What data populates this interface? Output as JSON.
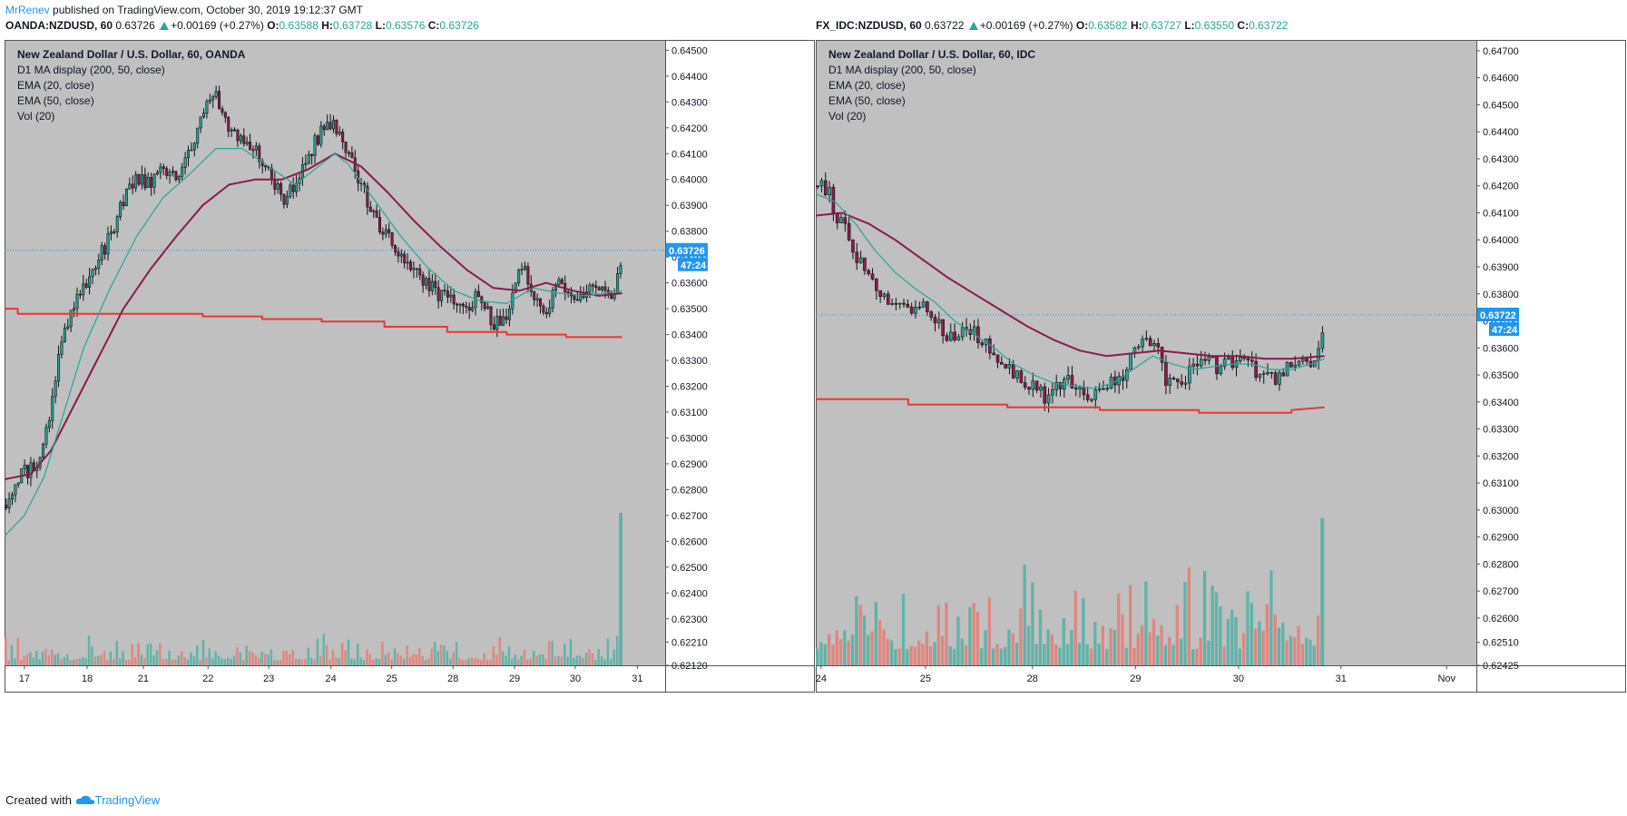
{
  "header": {
    "author": "MrRenev",
    "published": " published on TradingView.com, October 30, 2019 19:12:37 GMT"
  },
  "footer": {
    "created_with": "Created with",
    "brand": "TradingView"
  },
  "colors": {
    "bg": "#c0c0c0",
    "up": "#26a69a",
    "down": "#8d1c4e",
    "ema20": "#26a69a",
    "ema50": "#8b1a4a",
    "d1ma": "#e53935",
    "price_tag": "#2196f3",
    "vol_up": "#5fb3a9",
    "vol_down": "#e0867f"
  },
  "chart_data": [
    {
      "type": "candlestick",
      "symbol": "OANDA:NZDUSD",
      "interval": "60",
      "ohlc_header": {
        "sym": "OANDA:NZDUSD, 60",
        "last": "0.63726",
        "change": "+0.00169 (+0.27%)",
        "o": "0.63588",
        "h": "0.63728",
        "l": "0.63576",
        "c": "0.63726"
      },
      "legend": [
        "New Zealand Dollar / U.S. Dollar, 60, OANDA",
        "D1 MA display (200, 50, close)",
        "EMA (20, close)",
        "EMA (50, close)",
        "Vol (20)"
      ],
      "yticks": [
        "0.64500",
        "0.64400",
        "0.64300",
        "0.64200",
        "0.64100",
        "0.64000",
        "0.63900",
        "0.63800",
        "0.63700",
        "0.63600",
        "0.63500",
        "0.63400",
        "0.63300",
        "0.63200",
        "0.63100",
        "0.63000",
        "0.62900",
        "0.62800",
        "0.62700",
        "0.62600",
        "0.62500",
        "0.62400",
        "0.62300",
        "0.62210",
        "0.62120"
      ],
      "ylim": [
        0.6212,
        0.6454
      ],
      "xticks": [
        {
          "label": "17",
          "pos": 0.03
        },
        {
          "label": "18",
          "pos": 0.125
        },
        {
          "label": "21",
          "pos": 0.21
        },
        {
          "label": "22",
          "pos": 0.308
        },
        {
          "label": "23",
          "pos": 0.4
        },
        {
          "label": "24",
          "pos": 0.494
        },
        {
          "label": "25",
          "pos": 0.586
        },
        {
          "label": "28",
          "pos": 0.679
        },
        {
          "label": "29",
          "pos": 0.772
        },
        {
          "label": "30",
          "pos": 0.864
        },
        {
          "label": "31",
          "pos": 0.958
        }
      ],
      "price_tag": "0.63726",
      "countdown": "47:24",
      "last_price": 0.63726,
      "path": [
        [
          0,
          0.6274
        ],
        [
          0.02,
          0.6285
        ],
        [
          0.05,
          0.629
        ],
        [
          0.07,
          0.631
        ],
        [
          0.085,
          0.6335
        ],
        [
          0.1,
          0.6348
        ],
        [
          0.12,
          0.6358
        ],
        [
          0.14,
          0.6368
        ],
        [
          0.16,
          0.6378
        ],
        [
          0.18,
          0.6392
        ],
        [
          0.2,
          0.64
        ],
        [
          0.22,
          0.6398
        ],
        [
          0.24,
          0.6405
        ],
        [
          0.26,
          0.64
        ],
        [
          0.28,
          0.641
        ],
        [
          0.3,
          0.6428
        ],
        [
          0.32,
          0.6432
        ],
        [
          0.34,
          0.6418
        ],
        [
          0.36,
          0.6414
        ],
        [
          0.38,
          0.6412
        ],
        [
          0.4,
          0.6403
        ],
        [
          0.42,
          0.6392
        ],
        [
          0.44,
          0.6398
        ],
        [
          0.46,
          0.641
        ],
        [
          0.48,
          0.6418
        ],
        [
          0.5,
          0.6422
        ],
        [
          0.52,
          0.641
        ],
        [
          0.54,
          0.6398
        ],
        [
          0.56,
          0.6385
        ],
        [
          0.58,
          0.6378
        ],
        [
          0.6,
          0.6372
        ],
        [
          0.62,
          0.6364
        ],
        [
          0.64,
          0.636
        ],
        [
          0.66,
          0.6355
        ],
        [
          0.68,
          0.6352
        ],
        [
          0.7,
          0.635
        ],
        [
          0.72,
          0.6356
        ],
        [
          0.74,
          0.6343
        ],
        [
          0.76,
          0.6348
        ],
        [
          0.78,
          0.6368
        ],
        [
          0.8,
          0.6356
        ],
        [
          0.82,
          0.635
        ],
        [
          0.84,
          0.636
        ],
        [
          0.86,
          0.6352
        ],
        [
          0.88,
          0.6356
        ],
        [
          0.9,
          0.6358
        ],
        [
          0.91,
          0.6354
        ],
        [
          0.925,
          0.6358
        ],
        [
          0.935,
          0.6372
        ]
      ],
      "ema20": [
        [
          0,
          0.6262
        ],
        [
          0.03,
          0.627
        ],
        [
          0.06,
          0.6285
        ],
        [
          0.09,
          0.631
        ],
        [
          0.12,
          0.6335
        ],
        [
          0.16,
          0.6358
        ],
        [
          0.2,
          0.6378
        ],
        [
          0.24,
          0.6393
        ],
        [
          0.28,
          0.6402
        ],
        [
          0.32,
          0.6412
        ],
        [
          0.36,
          0.6412
        ],
        [
          0.4,
          0.6405
        ],
        [
          0.44,
          0.6398
        ],
        [
          0.48,
          0.6406
        ],
        [
          0.5,
          0.641
        ],
        [
          0.52,
          0.6406
        ],
        [
          0.56,
          0.6392
        ],
        [
          0.6,
          0.6378
        ],
        [
          0.64,
          0.6366
        ],
        [
          0.68,
          0.6357
        ],
        [
          0.72,
          0.6353
        ],
        [
          0.76,
          0.6352
        ],
        [
          0.8,
          0.6358
        ],
        [
          0.84,
          0.6356
        ],
        [
          0.88,
          0.6355
        ],
        [
          0.935,
          0.6357
        ]
      ],
      "ema50": [
        [
          0,
          0.6284
        ],
        [
          0.04,
          0.6286
        ],
        [
          0.07,
          0.6295
        ],
        [
          0.1,
          0.631
        ],
        [
          0.14,
          0.633
        ],
        [
          0.18,
          0.635
        ],
        [
          0.22,
          0.6365
        ],
        [
          0.26,
          0.6378
        ],
        [
          0.3,
          0.639
        ],
        [
          0.34,
          0.6398
        ],
        [
          0.38,
          0.64
        ],
        [
          0.42,
          0.64
        ],
        [
          0.46,
          0.6404
        ],
        [
          0.5,
          0.641
        ],
        [
          0.54,
          0.6405
        ],
        [
          0.58,
          0.6395
        ],
        [
          0.62,
          0.6384
        ],
        [
          0.66,
          0.6374
        ],
        [
          0.7,
          0.6365
        ],
        [
          0.74,
          0.6358
        ],
        [
          0.78,
          0.6357
        ],
        [
          0.82,
          0.636
        ],
        [
          0.86,
          0.6357
        ],
        [
          0.9,
          0.6355
        ],
        [
          0.935,
          0.6356
        ]
      ],
      "d1ma": [
        [
          0,
          0.635
        ],
        [
          0.02,
          0.635
        ],
        [
          0.02,
          0.6348
        ],
        [
          0.3,
          0.6348
        ],
        [
          0.3,
          0.6347
        ],
        [
          0.39,
          0.6347
        ],
        [
          0.39,
          0.6346
        ],
        [
          0.48,
          0.6346
        ],
        [
          0.48,
          0.6345
        ],
        [
          0.575,
          0.6345
        ],
        [
          0.575,
          0.6343
        ],
        [
          0.67,
          0.6343
        ],
        [
          0.67,
          0.6341
        ],
        [
          0.76,
          0.6341
        ],
        [
          0.76,
          0.634
        ],
        [
          0.85,
          0.634
        ],
        [
          0.85,
          0.6339
        ],
        [
          0.935,
          0.6339
        ]
      ],
      "vol_max_y": 0.6225,
      "vol_spike": [
        0.93,
        0.6271
      ]
    },
    {
      "type": "candlestick",
      "symbol": "FX_IDC:NZDUSD",
      "interval": "60",
      "ohlc_header": {
        "sym": "FX_IDC:NZDUSD, 60",
        "last": "0.63722",
        "change": "+0.00169 (+0.27%)",
        "o": "0.63582",
        "h": "0.63727",
        "l": "0.63550",
        "c": "0.63722"
      },
      "legend": [
        "New Zealand Dollar / U.S. Dollar, 60, IDC",
        "D1 MA display (200, 50, close)",
        "EMA (20, close)",
        "EMA (50, close)",
        "Vol (20)"
      ],
      "yticks": [
        "0.64700",
        "0.64600",
        "0.64500",
        "0.64400",
        "0.64300",
        "0.64200",
        "0.64100",
        "0.64000",
        "0.63900",
        "0.63800",
        "0.63700",
        "0.63600",
        "0.63500",
        "0.63400",
        "0.63300",
        "0.63200",
        "0.63100",
        "0.63000",
        "0.62900",
        "0.62800",
        "0.62700",
        "0.62600",
        "0.62510",
        "0.62425"
      ],
      "ylim": [
        0.62425,
        0.6474
      ],
      "xticks": [
        {
          "label": "24",
          "pos": 0.008
        },
        {
          "label": "25",
          "pos": 0.166
        },
        {
          "label": "28",
          "pos": 0.328
        },
        {
          "label": "29",
          "pos": 0.484
        },
        {
          "label": "30",
          "pos": 0.64
        },
        {
          "label": "31",
          "pos": 0.795
        },
        {
          "label": "Nov",
          "pos": 0.955
        }
      ],
      "price_tag": "0.63722",
      "countdown": "47:24",
      "last_price": 0.63722,
      "path": [
        [
          0,
          0.642
        ],
        [
          0.02,
          0.6418
        ],
        [
          0.03,
          0.641
        ],
        [
          0.05,
          0.6402
        ],
        [
          0.06,
          0.6395
        ],
        [
          0.08,
          0.6388
        ],
        [
          0.1,
          0.638
        ],
        [
          0.12,
          0.6378
        ],
        [
          0.14,
          0.6376
        ],
        [
          0.17,
          0.6374
        ],
        [
          0.19,
          0.6368
        ],
        [
          0.21,
          0.6362
        ],
        [
          0.23,
          0.6368
        ],
        [
          0.25,
          0.6362
        ],
        [
          0.27,
          0.6358
        ],
        [
          0.29,
          0.6352
        ],
        [
          0.31,
          0.6348
        ],
        [
          0.33,
          0.6345
        ],
        [
          0.35,
          0.6342
        ],
        [
          0.37,
          0.6346
        ],
        [
          0.39,
          0.6348
        ],
        [
          0.41,
          0.634
        ],
        [
          0.43,
          0.6345
        ],
        [
          0.45,
          0.6348
        ],
        [
          0.47,
          0.635
        ],
        [
          0.48,
          0.6362
        ],
        [
          0.5,
          0.6365
        ],
        [
          0.52,
          0.6358
        ],
        [
          0.53,
          0.6348
        ],
        [
          0.55,
          0.6345
        ],
        [
          0.57,
          0.6352
        ],
        [
          0.59,
          0.6356
        ],
        [
          0.61,
          0.6352
        ],
        [
          0.63,
          0.6355
        ],
        [
          0.65,
          0.6356
        ],
        [
          0.67,
          0.635
        ],
        [
          0.69,
          0.6348
        ],
        [
          0.71,
          0.6352
        ],
        [
          0.73,
          0.6356
        ],
        [
          0.75,
          0.6352
        ],
        [
          0.76,
          0.6358
        ],
        [
          0.77,
          0.6372
        ]
      ],
      "ema20": [
        [
          0,
          0.6417
        ],
        [
          0.03,
          0.6414
        ],
        [
          0.06,
          0.6406
        ],
        [
          0.09,
          0.6396
        ],
        [
          0.12,
          0.6388
        ],
        [
          0.15,
          0.6382
        ],
        [
          0.18,
          0.6377
        ],
        [
          0.21,
          0.637
        ],
        [
          0.24,
          0.6365
        ],
        [
          0.27,
          0.636
        ],
        [
          0.3,
          0.6354
        ],
        [
          0.33,
          0.635
        ],
        [
          0.36,
          0.6347
        ],
        [
          0.39,
          0.6346
        ],
        [
          0.42,
          0.6345
        ],
        [
          0.45,
          0.6347
        ],
        [
          0.48,
          0.6352
        ],
        [
          0.51,
          0.6357
        ],
        [
          0.54,
          0.6354
        ],
        [
          0.57,
          0.6352
        ],
        [
          0.6,
          0.6353
        ],
        [
          0.63,
          0.6354
        ],
        [
          0.66,
          0.6354
        ],
        [
          0.69,
          0.6352
        ],
        [
          0.72,
          0.6352
        ],
        [
          0.75,
          0.6354
        ],
        [
          0.77,
          0.6356
        ]
      ],
      "ema50": [
        [
          0,
          0.6409
        ],
        [
          0.04,
          0.641
        ],
        [
          0.08,
          0.6406
        ],
        [
          0.12,
          0.64
        ],
        [
          0.16,
          0.6393
        ],
        [
          0.2,
          0.6386
        ],
        [
          0.24,
          0.638
        ],
        [
          0.28,
          0.6374
        ],
        [
          0.32,
          0.6368
        ],
        [
          0.36,
          0.6363
        ],
        [
          0.4,
          0.6359
        ],
        [
          0.44,
          0.6357
        ],
        [
          0.48,
          0.6358
        ],
        [
          0.52,
          0.6359
        ],
        [
          0.56,
          0.6358
        ],
        [
          0.6,
          0.6357
        ],
        [
          0.64,
          0.6357
        ],
        [
          0.68,
          0.6356
        ],
        [
          0.72,
          0.6356
        ],
        [
          0.77,
          0.6357
        ]
      ],
      "d1ma": [
        [
          0,
          0.6341
        ],
        [
          0.14,
          0.6341
        ],
        [
          0.14,
          0.6339
        ],
        [
          0.29,
          0.6339
        ],
        [
          0.29,
          0.6338
        ],
        [
          0.43,
          0.6338
        ],
        [
          0.43,
          0.6337
        ],
        [
          0.58,
          0.6337
        ],
        [
          0.58,
          0.6336
        ],
        [
          0.72,
          0.6336
        ],
        [
          0.72,
          0.6337
        ],
        [
          0.77,
          0.6338
        ]
      ],
      "vol_max_y": 0.6282,
      "vol_spike": [
        0.764,
        0.6297
      ]
    }
  ]
}
